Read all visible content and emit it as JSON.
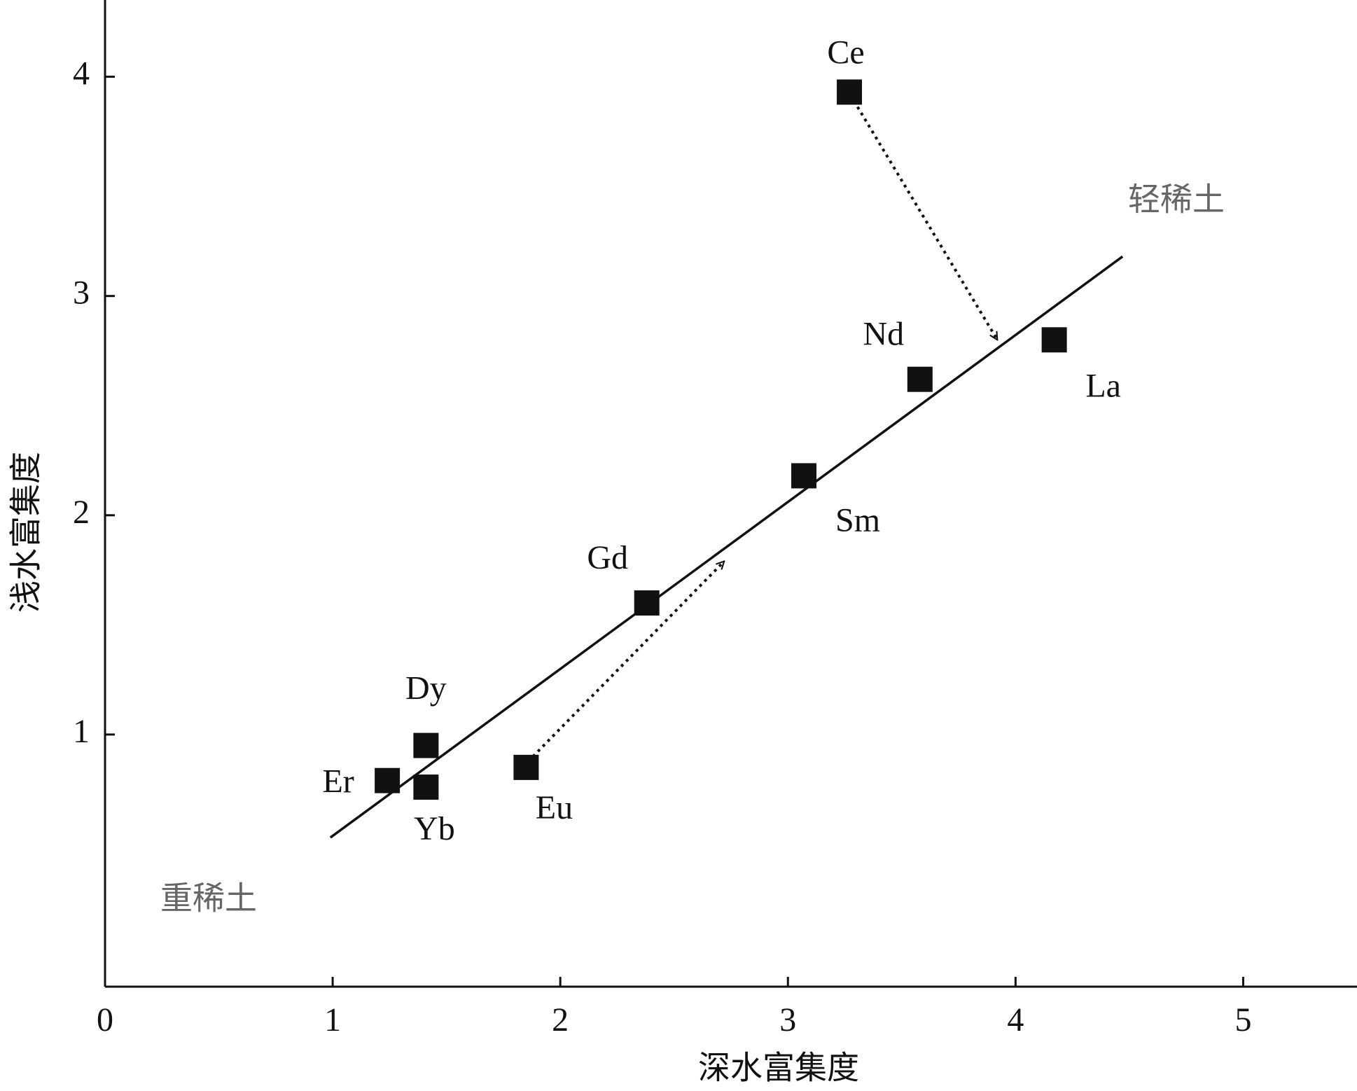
{
  "chart_data": {
    "type": "scatter",
    "x_label": "深水富集度",
    "y_label": "浅水富集度",
    "point_labels": [
      "Ce",
      "Nd",
      "La",
      "Sm",
      "Gd",
      "Dy",
      "Yb",
      "Er",
      "Eu"
    ],
    "x": [
      3.27,
      3.58,
      4.17,
      3.07,
      2.38,
      1.41,
      1.41,
      1.24,
      1.85
    ],
    "values": [
      3.93,
      2.62,
      2.8,
      2.18,
      1.6,
      0.95,
      0.76,
      0.79,
      0.85
    ],
    "color": "#111111",
    "lines": [
      {
        "style": "solid",
        "arrow": false,
        "x": [
          0.99,
          4.47
        ],
        "y": [
          0.53,
          3.18
        ]
      },
      {
        "style": "dotted",
        "arrow": true,
        "x": [
          3.29,
          3.92
        ],
        "y": [
          3.89,
          2.8
        ]
      },
      {
        "style": "dotted",
        "arrow": true,
        "x": [
          1.88,
          2.72
        ],
        "y": [
          0.9,
          1.79
        ]
      }
    ],
    "annotations": [
      "轻稀土",
      "重稀土"
    ],
    "xlim": [
      0,
      5.5
    ],
    "xticks": [
      0,
      1,
      2,
      3,
      4,
      5
    ],
    "ylim": [
      -0.15,
      4.35
    ],
    "yticks": [
      1,
      2,
      3,
      4
    ],
    "grid": false
  }
}
